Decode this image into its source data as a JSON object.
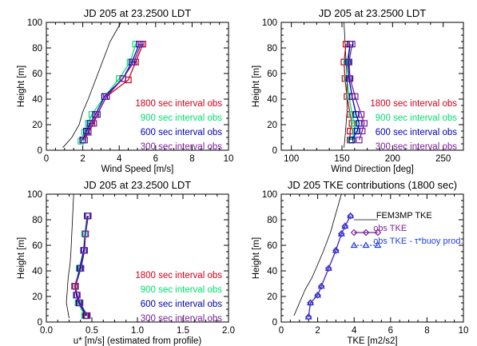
{
  "chart_data": [
    {
      "type": "line",
      "title": "JD 205 at 23.2500 LDT",
      "xlabel": "Wind Speed [m/s]",
      "ylabel": "Height [m]",
      "xlim": [
        0,
        10
      ],
      "ylim": [
        0,
        100
      ],
      "xticks": [
        "0",
        "2",
        "4",
        "6",
        "8",
        "10"
      ],
      "yticks": [
        "0",
        "20",
        "40",
        "60",
        "80",
        "100"
      ],
      "legend_position": "lower-right",
      "model": {
        "x": [
          0.9,
          1.4,
          1.8,
          2.0,
          2.3,
          2.7,
          3.1,
          3.5,
          4.1
        ],
        "y": [
          2,
          10,
          20,
          30,
          40,
          55,
          70,
          85,
          100
        ]
      },
      "series": [
        {
          "name": "1800 sec interval obs",
          "color": "#d0001a",
          "marker": "square",
          "x": [
            2.0,
            2.3,
            2.5,
            2.8,
            3.3,
            4.5,
            4.9,
            5.3
          ],
          "y": [
            8,
            15,
            21,
            28,
            42,
            55,
            69,
            83
          ]
        },
        {
          "name": "900 sec interval obs",
          "color": "#00e070",
          "marker": "square",
          "x": [
            1.9,
            2.1,
            2.3,
            2.5,
            3.2,
            4.0,
            4.6,
            4.9
          ],
          "y": [
            7,
            14,
            21,
            28,
            42,
            56,
            69,
            83
          ]
        },
        {
          "name": "600 sec interval obs",
          "color": "#0000b0",
          "marker": "square",
          "x": [
            2.0,
            2.2,
            2.4,
            2.7,
            3.2,
            4.2,
            4.7,
            5.1
          ],
          "y": [
            8,
            15,
            21,
            28,
            42,
            56,
            69,
            83
          ]
        },
        {
          "name": "300 sec interval obs",
          "color": "#7a1f9a",
          "marker": "square",
          "x": [
            2.1,
            2.3,
            2.6,
            2.8,
            3.3,
            4.2,
            4.8,
            5.2
          ],
          "y": [
            8,
            14,
            21,
            28,
            42,
            56,
            69,
            83
          ]
        }
      ]
    },
    {
      "type": "line",
      "title": "JD 205 at 23.2500 LDT",
      "xlabel": "Wind Direction [deg]",
      "ylabel": "Height [m]",
      "xlim": [
        90,
        270
      ],
      "ylim": [
        0,
        100
      ],
      "xticks": [
        "100",
        "150",
        "200",
        "250"
      ],
      "xtick_values": [
        100,
        150,
        200,
        250
      ],
      "yticks": [
        "0",
        "20",
        "40",
        "60",
        "80",
        "100"
      ],
      "legend_position": "lower-right",
      "model": {
        "x": [
          152,
          153,
          154,
          155,
          155,
          155,
          154,
          153,
          152
        ],
        "y": [
          2,
          10,
          20,
          30,
          40,
          55,
          70,
          85,
          100
        ]
      },
      "series": [
        {
          "name": "1800 sec interval obs",
          "color": "#d0001a",
          "marker": "square",
          "x": [
            158,
            158,
            160,
            158,
            155,
            153,
            152,
            154
          ],
          "y": [
            8,
            15,
            21,
            28,
            42,
            56,
            69,
            83
          ]
        },
        {
          "name": "900 sec interval obs",
          "color": "#00e070",
          "marker": "square",
          "x": [
            159,
            163,
            162,
            160,
            157,
            155,
            155,
            158
          ],
          "y": [
            8,
            15,
            21,
            28,
            42,
            56,
            69,
            83
          ]
        },
        {
          "name": "600 sec interval obs",
          "color": "#0000b0",
          "marker": "square",
          "x": [
            160,
            165,
            167,
            164,
            160,
            157,
            156,
            158
          ],
          "y": [
            8,
            15,
            21,
            28,
            42,
            56,
            69,
            83
          ]
        },
        {
          "name": "300 sec interval obs",
          "color": "#7a1f9a",
          "marker": "square",
          "x": [
            167,
            170,
            172,
            169,
            163,
            158,
            157,
            160
          ],
          "y": [
            8,
            15,
            21,
            28,
            42,
            56,
            69,
            83
          ]
        }
      ]
    },
    {
      "type": "line",
      "title": "JD 205 at 23.2500 LDT",
      "xlabel": "u* [m/s] (estimated from profile)",
      "ylabel": "Height [m]",
      "xlim": [
        0,
        2
      ],
      "ylim": [
        0,
        100
      ],
      "xticks": [
        "0.0",
        "0.5",
        "1.0",
        "1.5",
        "2.0"
      ],
      "yticks": [
        "0",
        "20",
        "40",
        "60",
        "80",
        "100"
      ],
      "legend_position": "lower-right",
      "model": {
        "x": [
          0.25,
          0.22,
          0.23,
          0.24,
          0.26,
          0.27,
          0.28,
          0.29,
          0.3
        ],
        "y": [
          3,
          15,
          25,
          35,
          45,
          55,
          70,
          85,
          100
        ]
      },
      "series": [
        {
          "name": "1800 sec interval obs",
          "color": "#d0001a",
          "marker": "square",
          "x": [
            0.43,
            0.35,
            0.33,
            0.31,
            0.37,
            0.41,
            0.43,
            0.46
          ],
          "y": [
            5,
            15,
            21,
            28,
            42,
            56,
            69,
            83
          ]
        },
        {
          "name": "900 sec interval obs",
          "color": "#00e070",
          "marker": "square",
          "x": [
            0.42,
            0.35,
            0.33,
            0.32,
            0.36,
            0.41,
            0.42,
            0.45
          ],
          "y": [
            5,
            15,
            21,
            28,
            42,
            56,
            69,
            83
          ]
        },
        {
          "name": "600 sec interval obs",
          "color": "#0000b0",
          "marker": "square",
          "x": [
            0.44,
            0.36,
            0.33,
            0.32,
            0.37,
            0.41,
            0.43,
            0.45
          ],
          "y": [
            5,
            15,
            21,
            28,
            42,
            56,
            69,
            83
          ]
        },
        {
          "name": "300 sec interval obs",
          "color": "#7a1f9a",
          "marker": "square",
          "x": [
            0.45,
            0.37,
            0.34,
            0.32,
            0.38,
            0.42,
            0.43,
            0.46
          ],
          "y": [
            5,
            15,
            21,
            28,
            42,
            56,
            69,
            83
          ]
        }
      ]
    },
    {
      "type": "line",
      "title": "JD 205 TKE contributions (1800 sec)",
      "xlabel": "TKE [m2/s2]",
      "ylabel": "Height [m]",
      "xlim": [
        0,
        10
      ],
      "ylim": [
        0,
        100
      ],
      "xticks": [
        "0",
        "2",
        "4",
        "6",
        "8",
        "10"
      ],
      "yticks": [
        "0",
        "20",
        "40",
        "60",
        "80",
        "100"
      ],
      "legend_position": "right",
      "series": [
        {
          "name": "FEM3MP TKE",
          "color": "#000000",
          "marker": "none",
          "x": [
            0.7,
            1.0,
            1.3,
            1.7,
            2.0,
            2.3,
            2.7,
            3.0,
            3.3
          ],
          "y": [
            5,
            15,
            25,
            35,
            45,
            55,
            70,
            85,
            100
          ]
        },
        {
          "name": "obs TKE",
          "color": "#7a1f9a",
          "marker": "diamond",
          "x": [
            1.5,
            1.6,
            2.0,
            2.2,
            2.6,
            3.0,
            3.3,
            3.5,
            3.8
          ],
          "y": [
            4,
            15,
            21,
            28,
            42,
            56,
            69,
            75,
            83
          ]
        },
        {
          "name": "obs TKE - τ*buoy prod.",
          "color": "#1f3fe0",
          "marker": "triangle",
          "x": [
            1.5,
            1.6,
            2.0,
            2.2,
            2.6,
            3.0,
            3.3,
            3.5,
            3.8
          ],
          "y": [
            4,
            15,
            21,
            28,
            42,
            56,
            69,
            75,
            83
          ]
        }
      ]
    }
  ]
}
